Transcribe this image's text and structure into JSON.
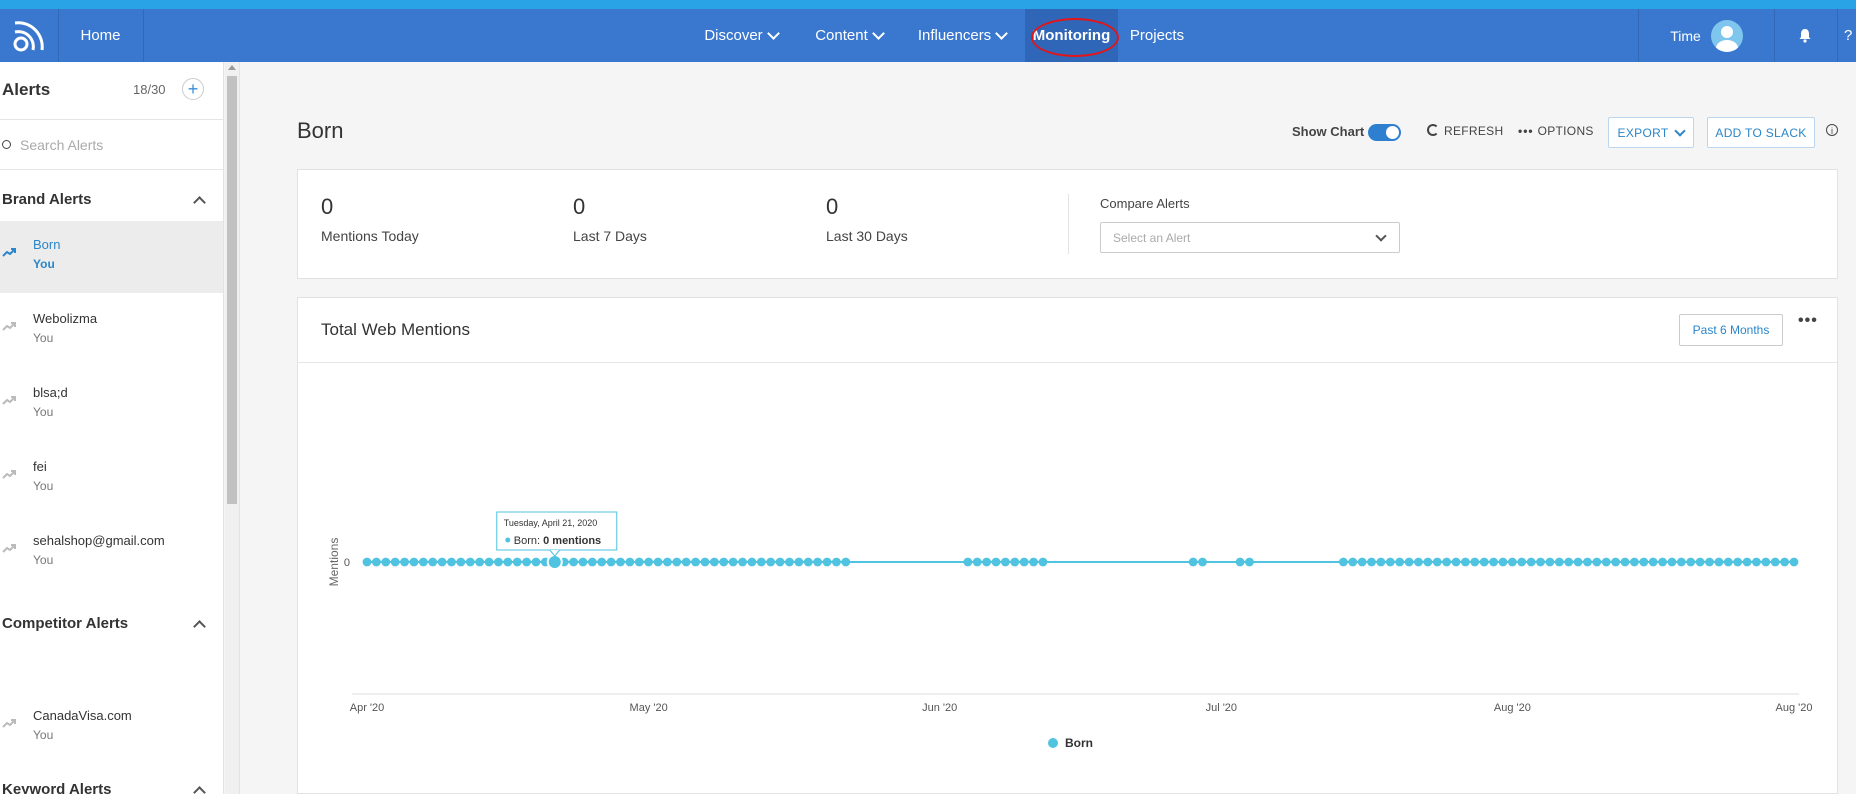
{
  "nav": {
    "home": "Home",
    "items": [
      {
        "label": "Discover",
        "dropdown": true
      },
      {
        "label": "Content",
        "dropdown": true
      },
      {
        "label": "Influencers",
        "dropdown": true
      },
      {
        "label": "Monitoring",
        "dropdown": false,
        "active": true
      },
      {
        "label": "Projects",
        "dropdown": false
      }
    ],
    "user_name": "Time",
    "help": "?"
  },
  "sidebar": {
    "title": "Alerts",
    "count": "18/30",
    "add": "+",
    "search_placeholder": "Search Alerts",
    "sections": [
      {
        "title": "Brand Alerts",
        "items": [
          {
            "name": "Born",
            "owner": "You",
            "active": true
          },
          {
            "name": "Webolizma",
            "owner": "You"
          },
          {
            "name": "blsa;d",
            "owner": "You"
          },
          {
            "name": "fei",
            "owner": "You"
          },
          {
            "name": "sehalshop@gmail.com",
            "owner": "You"
          }
        ]
      },
      {
        "title": "Competitor Alerts",
        "items": [
          {
            "name": "CanadaVisa.com",
            "owner": "You"
          }
        ]
      },
      {
        "title": "Keyword Alerts",
        "items": []
      }
    ]
  },
  "main": {
    "title": "Born",
    "show_chart": "Show Chart",
    "show_chart_on": true,
    "refresh": "REFRESH",
    "options": "OPTIONS",
    "export": "EXPORT",
    "add_to_slack": "ADD TO SLACK",
    "info": "i"
  },
  "stats": [
    {
      "value": "0",
      "label": "Mentions Today"
    },
    {
      "value": "0",
      "label": "Last 7 Days"
    },
    {
      "value": "0",
      "label": "Last 30 Days"
    }
  ],
  "compare": {
    "label": "Compare Alerts",
    "placeholder": "Select an Alert"
  },
  "chart_card": {
    "title": "Total Web Mentions",
    "period": "Past 6 Months",
    "more": "•••"
  },
  "tooltip": {
    "date": "Tuesday, April 21, 2020",
    "series": "Born",
    "value": "0 mentions"
  },
  "colors": {
    "nav": "#3a78cf",
    "accent": "#2a86c9",
    "series": "#4fc3e0",
    "highlight": "#e0161b"
  },
  "chart_data": {
    "type": "line",
    "x_start": "2020-04-01",
    "x_end": "2020-08-31",
    "xticks": [
      "Apr '20",
      "May '20",
      "Jun '20",
      "Jul '20",
      "Aug '20",
      "Aug '20"
    ],
    "ylabel": "Mentions",
    "yticks": [
      "0"
    ],
    "series": [
      {
        "name": "Born",
        "gaps": [
          [
            "2020-05-23",
            "2020-06-03"
          ],
          [
            "2020-06-13",
            "2020-06-27"
          ],
          [
            "2020-06-30",
            "2020-07-02"
          ],
          [
            "2020-07-05",
            "2020-07-13"
          ]
        ],
        "value": 0
      }
    ],
    "legend": [
      "Born"
    ],
    "legend_position": "bottom-center"
  }
}
